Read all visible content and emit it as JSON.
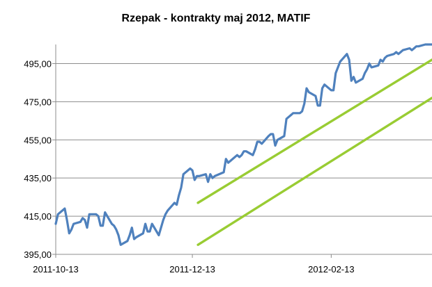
{
  "chart_data": {
    "type": "line",
    "title": "Rzepak - kontrakty maj 2012, MATIF",
    "xlabel": "",
    "ylabel": "",
    "ylim": [
      395,
      505
    ],
    "yticks": [
      "395,00",
      "415,00",
      "435,00",
      "455,00",
      "475,00",
      "495,00"
    ],
    "ytick_values": [
      395,
      415,
      435,
      455,
      475,
      495
    ],
    "xticks": [
      "2011-10-13",
      "2011-12-13",
      "2012-02-13"
    ],
    "xtick_values": [
      "2011-10-13",
      "2011-12-13",
      "2012-02-13"
    ],
    "xlim": [
      "2011-10-13",
      "2012-03-29"
    ],
    "grid": "horizontal",
    "legend": "none",
    "series": [
      {
        "color": "#4f81bd",
        "x": [
          "2011-10-13",
          "2011-10-14",
          "2011-10-17",
          "2011-10-18",
          "2011-10-19",
          "2011-10-20",
          "2011-10-21",
          "2011-10-24",
          "2011-10-25",
          "2011-10-26",
          "2011-10-27",
          "2011-10-28",
          "2011-10-31",
          "2011-11-01",
          "2011-11-02",
          "2011-11-03",
          "2011-11-04",
          "2011-11-07",
          "2011-11-08",
          "2011-11-09",
          "2011-11-10",
          "2011-11-11",
          "2011-11-14",
          "2011-11-15",
          "2011-11-16",
          "2011-11-17",
          "2011-11-18",
          "2011-11-21",
          "2011-11-22",
          "2011-11-23",
          "2011-11-24",
          "2011-11-25",
          "2011-11-28",
          "2011-11-29",
          "2011-11-30",
          "2011-12-01",
          "2011-12-02",
          "2011-12-05",
          "2011-12-06",
          "2011-12-07",
          "2011-12-08",
          "2011-12-09",
          "2011-12-12",
          "2011-12-13",
          "2011-12-14",
          "2011-12-15",
          "2011-12-16",
          "2011-12-19",
          "2011-12-20",
          "2011-12-21",
          "2011-12-22",
          "2011-12-23",
          "2011-12-27",
          "2011-12-28",
          "2011-12-29",
          "2011-12-30",
          "2012-01-02",
          "2012-01-03",
          "2012-01-04",
          "2012-01-05",
          "2012-01-06",
          "2012-01-09",
          "2012-01-10",
          "2012-01-11",
          "2012-01-12",
          "2012-01-13",
          "2012-01-16",
          "2012-01-17",
          "2012-01-18",
          "2012-01-19",
          "2012-01-20",
          "2012-01-23",
          "2012-01-24",
          "2012-01-25",
          "2012-01-26",
          "2012-01-27",
          "2012-01-30",
          "2012-01-31",
          "2012-02-01",
          "2012-02-02",
          "2012-02-03",
          "2012-02-06",
          "2012-02-07",
          "2012-02-08",
          "2012-02-09",
          "2012-02-10",
          "2012-02-13",
          "2012-02-14",
          "2012-02-15",
          "2012-02-16",
          "2012-02-17",
          "2012-02-20",
          "2012-02-21",
          "2012-02-22",
          "2012-02-23",
          "2012-02-24",
          "2012-02-27",
          "2012-02-28",
          "2012-02-29",
          "2012-03-01",
          "2012-03-02",
          "2012-03-05",
          "2012-03-06",
          "2012-03-07",
          "2012-03-08",
          "2012-03-09",
          "2012-03-12",
          "2012-03-13",
          "2012-03-14",
          "2012-03-15",
          "2012-03-16",
          "2012-03-19",
          "2012-03-20",
          "2012-03-21",
          "2012-03-22",
          "2012-03-23",
          "2012-03-26",
          "2012-03-27",
          "2012-03-28",
          "2012-03-29"
        ],
        "values": [
          411,
          416,
          419,
          413,
          406,
          408,
          411,
          412,
          414,
          413,
          409,
          416,
          416,
          415,
          410,
          410,
          417,
          411,
          410,
          408,
          405,
          400,
          402,
          405,
          409,
          403,
          404,
          406,
          411,
          407,
          407,
          411,
          405,
          409,
          413,
          416,
          418,
          422,
          421,
          426,
          430,
          437,
          440,
          439,
          434,
          436,
          436,
          437,
          433,
          437,
          435,
          436,
          438,
          445,
          443,
          444,
          447,
          446,
          447,
          449,
          449,
          447,
          450,
          454,
          454,
          453,
          457,
          458,
          458,
          452,
          455,
          457,
          466,
          467,
          468,
          469,
          469,
          470,
          474,
          482,
          480,
          478,
          473,
          473,
          482,
          484,
          481,
          481,
          490,
          493,
          496,
          500,
          497,
          486,
          488,
          485,
          487,
          490,
          492,
          495,
          493,
          494,
          497,
          496,
          498,
          499,
          500,
          501,
          500,
          501,
          502,
          503,
          502,
          503,
          504,
          504,
          505,
          505,
          505,
          505
        ]
      }
    ],
    "annotations": [
      {
        "type": "channel-line",
        "name": "upper-trend-line",
        "color": "#99cc33",
        "x": [
          "2011-12-13",
          "2012-03-29"
        ],
        "y": [
          422,
          497
        ]
      },
      {
        "type": "channel-line",
        "name": "lower-trend-line",
        "color": "#99cc33",
        "x": [
          "2011-12-13",
          "2012-03-29"
        ],
        "y": [
          400,
          477
        ]
      }
    ]
  }
}
